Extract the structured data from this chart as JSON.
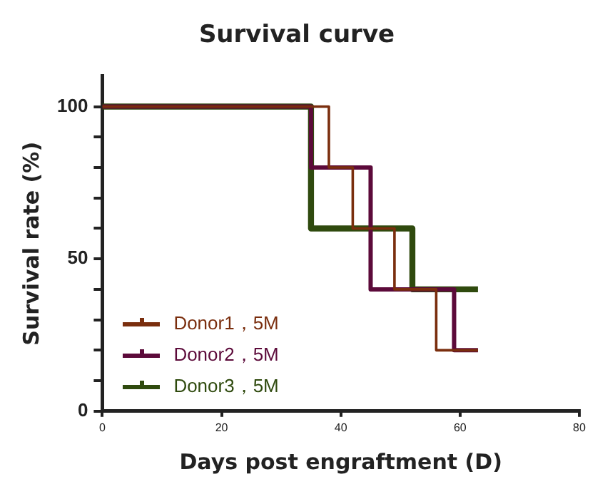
{
  "chart_data": {
    "type": "step",
    "title": "Survival curve",
    "xlabel": "Days post engraftment (D)",
    "ylabel": "Survival rate (%)",
    "series": [
      {
        "name": "Donor1，5M",
        "color": "#7a2e0e",
        "x": [
          0,
          38,
          42,
          49,
          56,
          63
        ],
        "values": [
          100,
          80,
          60,
          40,
          20,
          20
        ]
      },
      {
        "name": "Donor2，5M",
        "color": "#5c0a3a",
        "x": [
          0,
          35,
          45,
          59,
          63
        ],
        "values": [
          100,
          80,
          40,
          20,
          20
        ]
      },
      {
        "name": "Donor3，5M",
        "color": "#2f4a0e",
        "x": [
          0,
          35,
          52,
          63
        ],
        "values": [
          100,
          60,
          40,
          40
        ]
      }
    ],
    "xlim": [
      0,
      80
    ],
    "xticks": [
      0,
      20,
      40,
      60,
      80
    ],
    "ylim": [
      0,
      110
    ],
    "yticks": [
      0,
      {
        "value": 10,
        "label": null
      },
      {
        "value": 20,
        "label": null
      },
      {
        "value": 30,
        "label": null
      },
      {
        "value": 40,
        "label": null
      },
      50,
      {
        "value": 60,
        "label": null
      },
      {
        "value": 70,
        "label": null
      },
      {
        "value": 80,
        "label": null
      },
      {
        "value": 90,
        "label": null
      },
      100
    ],
    "grid": false,
    "legend": "bottom left",
    "line_style": "solid"
  }
}
